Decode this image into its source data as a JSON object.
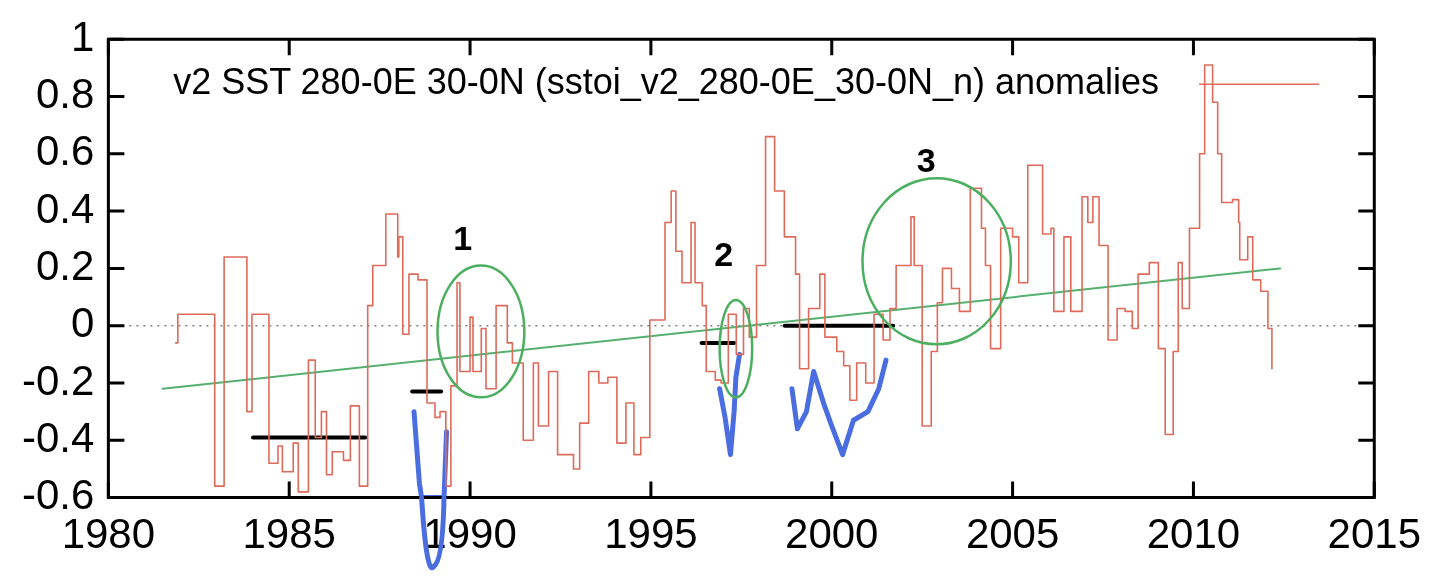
{
  "chart_data": {
    "type": "step",
    "xlim": [
      1980,
      2015
    ],
    "xticks": [
      1980,
      1985,
      1990,
      1995,
      2000,
      2005,
      2010,
      2015
    ],
    "ylim": [
      -0.6,
      1
    ],
    "yticks": [
      -0.6,
      -0.4,
      -0.2,
      0,
      0.2,
      0.4,
      0.6,
      0.8,
      1
    ],
    "legend": "top",
    "marker": "none",
    "ref_lines": [
      {
        "axis": "y",
        "value": 0,
        "color": "#808080",
        "line_style": "dotted"
      }
    ],
    "annotations": [
      "1",
      "2",
      "3"
    ],
    "series": [
      {
        "name": "v2 SST 280-0E 30-0N (sstoi_v2_280-0E_30-0N_n) anomalies",
        "color": "#e06a5a",
        "x": [
          1981.86,
          1981.92,
          1982.94,
          1983.2,
          1983.36,
          1983.83,
          1983.97,
          1984.44,
          1984.69,
          1984.81,
          1985.11,
          1985.25,
          1985.53,
          1985.72,
          1985.89,
          1986.03,
          1986.19,
          1986.5,
          1986.69,
          1986.94,
          1987.17,
          1987.31,
          1987.67,
          1988.0,
          1988.03,
          1988.14,
          1988.31,
          1988.56,
          1988.81,
          1989.03,
          1989.17,
          1989.33,
          1989.47,
          1989.64,
          1989.72,
          1990.0,
          1990.08,
          1990.31,
          1990.44,
          1990.72,
          1991.03,
          1991.17,
          1991.47,
          1991.75,
          1991.89,
          1992.17,
          1992.42,
          1992.86,
          1993.03,
          1993.28,
          1993.56,
          1993.81,
          1994.06,
          1994.31,
          1994.53,
          1994.72,
          1994.97,
          1995.39,
          1995.56,
          1995.69,
          1995.86,
          1996.11,
          1996.22,
          1996.42,
          1996.53,
          1996.78,
          1996.94,
          1997.14,
          1997.36,
          1997.56,
          1997.72,
          1997.92,
          1998.17,
          1998.42,
          1998.69,
          1999.0,
          1999.11,
          1999.36,
          1999.67,
          1999.81,
          2000.14,
          2000.33,
          2000.5,
          2000.69,
          2000.94,
          2001.17,
          2001.42,
          2001.61,
          2001.78,
          2002.19,
          2002.28,
          2002.5,
          2002.75,
          2002.92,
          2003.06,
          2003.31,
          2003.53,
          2003.83,
          2004.14,
          2004.25,
          2004.39,
          2004.67,
          2005.0,
          2005.17,
          2005.42,
          2005.83,
          2006.06,
          2006.14,
          2006.42,
          2006.61,
          2006.92,
          2007.08,
          2007.22,
          2007.39,
          2007.64,
          2007.89,
          2008.11,
          2008.31,
          2008.47,
          2008.78,
          2009.03,
          2009.22,
          2009.44,
          2009.58,
          2009.69,
          2009.89,
          2010.17,
          2010.31,
          2010.53,
          2010.67,
          2010.78,
          2011.08,
          2011.25,
          2011.28,
          2011.5,
          2011.64,
          2011.86,
          2012.06,
          2012.17
        ],
        "values": [
          -0.06,
          0.04,
          -0.56,
          0.24,
          0.24,
          -0.3,
          0.04,
          -0.48,
          -0.42,
          -0.51,
          -0.41,
          -0.58,
          -0.12,
          -0.39,
          -0.3,
          -0.52,
          -0.44,
          -0.47,
          -0.28,
          -0.56,
          0.07,
          0.21,
          0.39,
          0.24,
          0.31,
          -0.03,
          0.18,
          0.16,
          -0.27,
          -0.32,
          -0.3,
          -0.56,
          -0.21,
          0.15,
          -0.16,
          0.03,
          -0.16,
          -0.01,
          -0.22,
          0.07,
          -0.06,
          -0.13,
          -0.4,
          -0.13,
          -0.35,
          -0.16,
          -0.45,
          -0.5,
          -0.34,
          -0.16,
          -0.2,
          -0.18,
          -0.41,
          -0.27,
          -0.45,
          -0.39,
          0.02,
          0.36,
          0.47,
          0.26,
          0.15,
          0.36,
          0.15,
          0.07,
          -0.16,
          -0.19,
          -0.2,
          0.04,
          -0.1,
          0.06,
          -0.04,
          0.21,
          0.66,
          0.47,
          0.31,
          0.18,
          -0.15,
          0.06,
          0.18,
          -0.04,
          -0.09,
          -0.14,
          -0.26,
          -0.13,
          -0.2,
          0.04,
          -0.05,
          0.06,
          0.21,
          0.38,
          0.21,
          -0.35,
          -0.09,
          0.08,
          0.2,
          0.13,
          0.05,
          0.48,
          0.34,
          0.21,
          -0.08,
          0.34,
          0.31,
          0.15,
          0.56,
          0.32,
          0.34,
          0.05,
          0.31,
          0.05,
          0.45,
          0.36,
          0.45,
          0.28,
          -0.05,
          0.06,
          0.05,
          -0.01,
          0.18,
          0.22,
          -0.08,
          -0.38,
          -0.09,
          0.22,
          0.06,
          0.34,
          0.6,
          0.91,
          0.78,
          0.6,
          0.43,
          0.44,
          0.36,
          0.23,
          0.31,
          0.16,
          0.12,
          -0.01,
          -0.15
        ]
      },
      {
        "type": "line",
        "color": "#55b070",
        "x": [
          1981.5,
          2012.4
        ],
        "values": [
          -0.22,
          0.2
        ]
      },
      {
        "type": "line",
        "color": "#000000",
        "x": [
          1984.0,
          1987.1
        ],
        "values": [
          -0.39,
          -0.39
        ]
      },
      {
        "type": "line",
        "color": "#000000",
        "x": [
          1988.4,
          1989.2
        ],
        "values": [
          -0.23,
          -0.23
        ]
      },
      {
        "type": "line",
        "color": "#000000",
        "x": [
          1996.4,
          1997.3
        ],
        "values": [
          -0.06,
          -0.06
        ]
      },
      {
        "type": "line",
        "color": "#000000",
        "x": [
          1998.7,
          2001.7
        ],
        "values": [
          0,
          0
        ]
      },
      {
        "type": "line",
        "color": "#4a6ee0",
        "x": [
          1988.45,
          1988.6,
          1988.66,
          1989.28,
          1989.3,
          1989.35
        ],
        "values": [
          -0.3,
          -0.55,
          -0.6,
          -0.6,
          -0.6,
          -0.37
        ]
      },
      {
        "type": "line",
        "color": "#4a6ee0",
        "x": [
          1996.9,
          1997.05,
          1997.2,
          1997.3,
          1997.35,
          1997.45
        ],
        "values": [
          -0.22,
          -0.32,
          -0.45,
          -0.3,
          -0.18,
          -0.1
        ]
      },
      {
        "type": "line",
        "color": "#4a6ee0",
        "x": [
          1998.9,
          1999.05,
          1999.3,
          1999.5,
          1999.8,
          2000.0,
          2000.3,
          2000.6,
          2001.0,
          2001.3,
          2001.5
        ],
        "values": [
          -0.22,
          -0.36,
          -0.3,
          -0.16,
          -0.28,
          -0.35,
          -0.45,
          -0.33,
          -0.3,
          -0.22,
          -0.12
        ]
      }
    ]
  }
}
